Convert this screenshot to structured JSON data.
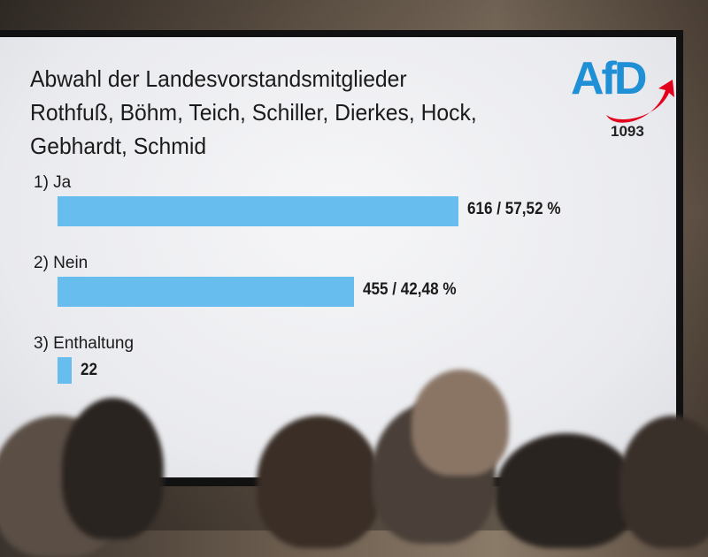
{
  "chart_data": {
    "type": "bar",
    "orientation": "horizontal",
    "title": "Abwahl der Landesvorstandsmitglieder\nRothfuß, Böhm, Teich, Schiller, Dierkes, Hock,\nGebhardt, Schmid",
    "categories": [
      "1) Ja",
      "2) Nein",
      "3) Enthaltung"
    ],
    "values": [
      616,
      455,
      22
    ],
    "data_labels": [
      "616 / 57,52 %",
      "455 / 42,48 %",
      "22"
    ],
    "bar_color": "#67bdee",
    "grid": false
  },
  "logo": {
    "text": "AfD",
    "blue": "#1f8fd6",
    "red": "#e3001b"
  },
  "total_count": "1093"
}
